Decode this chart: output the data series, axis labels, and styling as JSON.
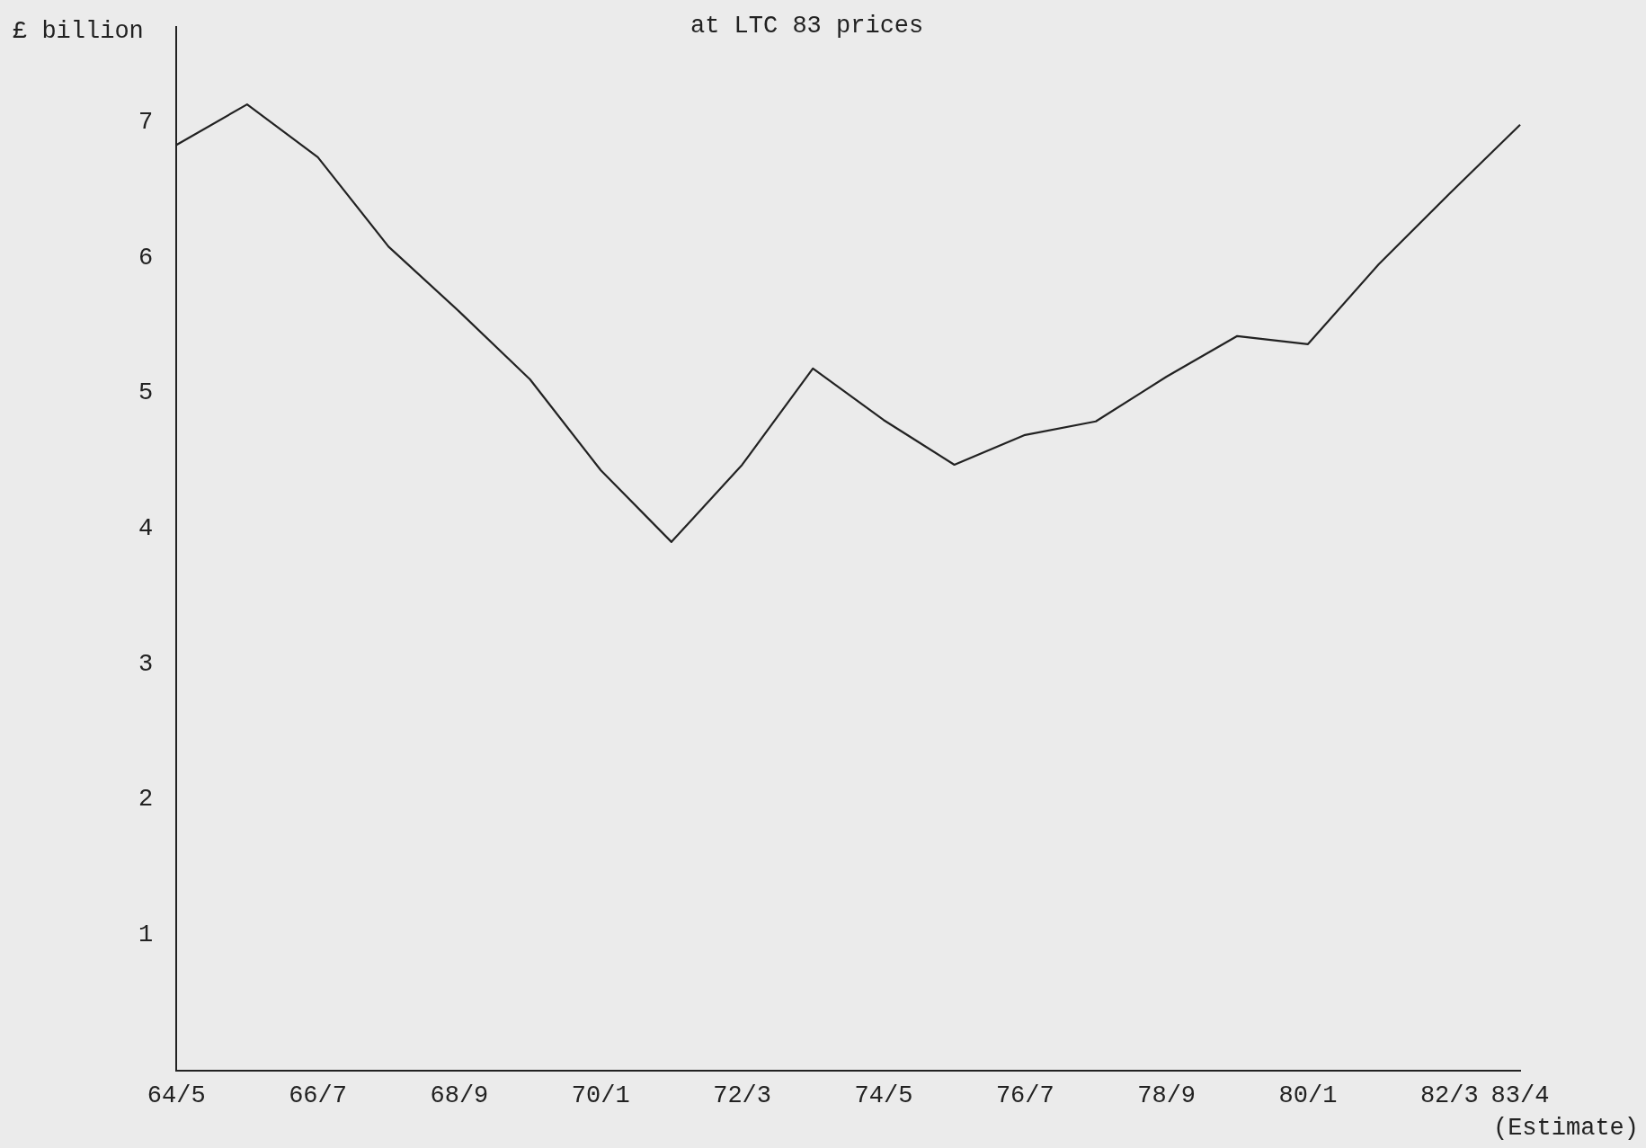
{
  "chart_data": {
    "type": "line",
    "title": "at LTC 83 prices",
    "ylabel": "£ billion",
    "annotations": [
      "(Estimate)"
    ],
    "categories": [
      "64/5",
      null,
      "66/7",
      null,
      "68/9",
      null,
      "70/1",
      null,
      "72/3",
      null,
      "74/5",
      null,
      "76/7",
      null,
      "78/9",
      null,
      "80/1",
      null,
      "82/3",
      "83/4"
    ],
    "series": [
      {
        "color": "#222222",
        "values": [
          6.83,
          7.13,
          6.74,
          6.08,
          5.6,
          5.1,
          4.43,
          3.9,
          4.47,
          5.18,
          4.8,
          4.47,
          4.69,
          4.79,
          5.12,
          5.42,
          5.36,
          5.95,
          6.47,
          6.98
        ]
      }
    ],
    "ylim": [
      0,
      7.7
    ],
    "yticks": [
      1,
      2,
      3,
      4,
      5,
      6,
      7
    ],
    "grid": false,
    "legend": false,
    "marker": "none",
    "line_style": "solid"
  }
}
